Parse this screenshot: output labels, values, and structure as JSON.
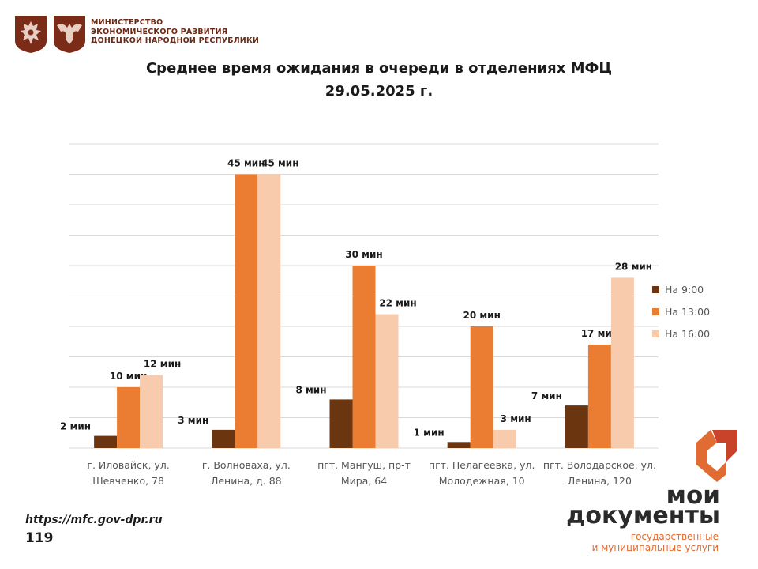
{
  "header": {
    "ministry_lines": [
      "МИНИСТЕРСТВО",
      "ЭКОНОМИЧЕСКОГО РАЗВИТИЯ",
      "ДОНЕЦКОЙ НАРОДНОЙ РЕСПУБЛИКИ"
    ],
    "emblem_icons": [
      "russia-coat-of-arms-icon",
      "dpr-coat-of-arms-icon"
    ]
  },
  "footer": {
    "url": "https://mfc.gov-dpr.ru",
    "page_number": "119",
    "brand_line1": "мои",
    "brand_line2": "документы",
    "brand_tagline": [
      "государственные",
      "и муниципальные услуги"
    ],
    "brand_icon": "moi-dokumenty-logo-icon"
  },
  "colors": {
    "series_9": "#6b3510",
    "series_13": "#ea7d32",
    "series_16": "#f8cbac",
    "grid": "#d9d9d9",
    "brand_orange": "#e06c33",
    "brand_dark": "#6b2a16"
  },
  "chart_data": {
    "type": "bar",
    "title": [
      "Среднее время ожидания в очереди в отделениях МФЦ",
      "29.05.2025 г."
    ],
    "categories": [
      [
        "г. Иловайск, ул.",
        "Шевченко, 78"
      ],
      [
        "г. Волноваха, ул.",
        "Ленина, д. 88"
      ],
      [
        "пгт. Мангуш, пр-т",
        "Мира, 64"
      ],
      [
        "пгт. Пелагеевка, ул.",
        "Молодежная, 10"
      ],
      [
        "пгт. Володарское, ул.",
        "Ленина, 120"
      ]
    ],
    "series": [
      {
        "name": "На 9:00",
        "color": "#6b3510",
        "values": [
          2,
          3,
          8,
          1,
          7
        ],
        "labels": [
          "2 мин",
          "3 мин",
          "8 мин",
          "1 мин",
          "7 мин"
        ]
      },
      {
        "name": "На 13:00",
        "color": "#ea7d32",
        "values": [
          10,
          45,
          30,
          20,
          17
        ],
        "labels": [
          "10  мин",
          "45 мин",
          "30 мин",
          "20 мин",
          "17 мин"
        ]
      },
      {
        "name": "На 16:00",
        "color": "#f8cbac",
        "values": [
          12,
          45,
          22,
          3,
          28
        ],
        "labels": [
          "12 мин",
          "45 мин",
          "22 мин",
          "3 мин",
          "28 мин"
        ]
      }
    ],
    "ylim": [
      0,
      50
    ],
    "y_grid_step": 5,
    "grid": true,
    "y_axis_labels_shown": false,
    "legend_position": "right",
    "xlabel": "",
    "ylabel": ""
  }
}
